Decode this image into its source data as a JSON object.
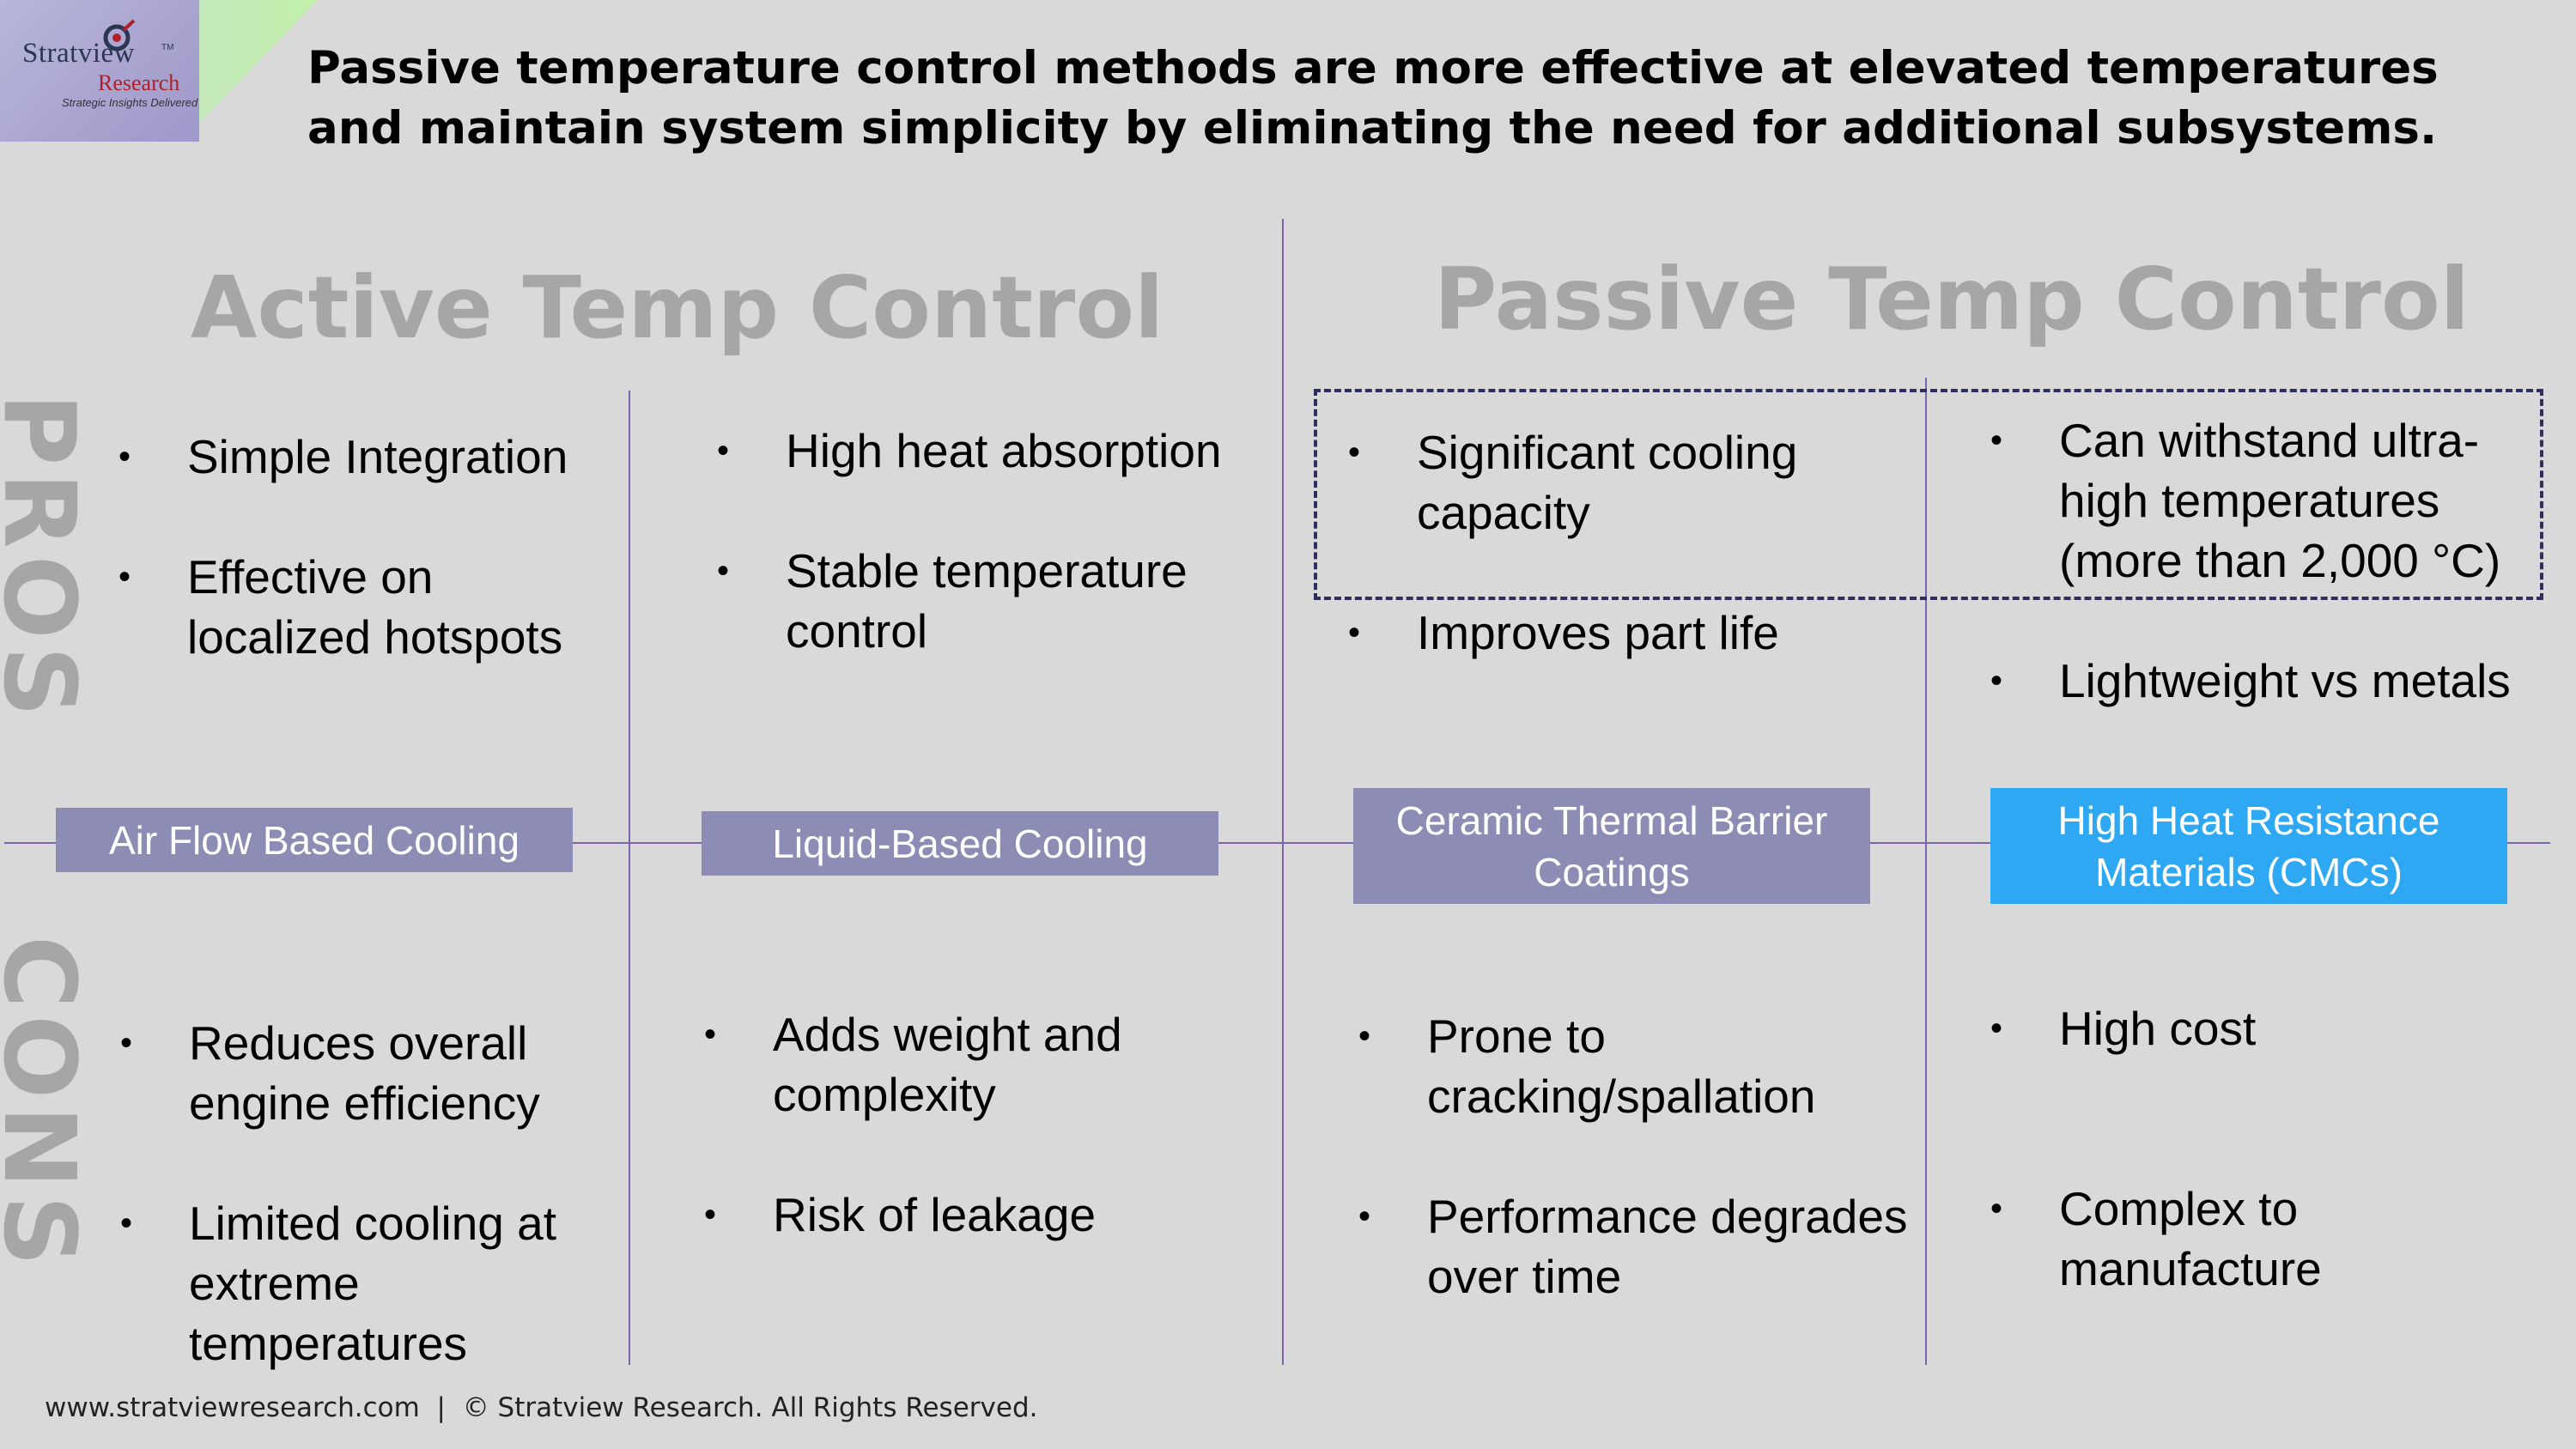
{
  "logo": {
    "name": "Stratview",
    "tm": "TM",
    "sub": "Research",
    "tagline": "Strategic Insights Delivered"
  },
  "headline": "Passive temperature control methods are more effective at elevated temperatures and maintain system simplicity by eliminating the need for additional subsystems.",
  "sections": {
    "active": "Active Temp Control",
    "passive": "Passive Temp Control"
  },
  "side_labels": {
    "pros": "PROS",
    "cons": "CONS"
  },
  "columns": [
    {
      "category": "Air Flow Based Cooling",
      "pros": [
        "Simple Integration",
        "Effective on localized hotspots"
      ],
      "cons": [
        "Reduces overall engine efficiency",
        "Limited cooling at extreme temperatures"
      ]
    },
    {
      "category": "Liquid-Based Cooling",
      "pros": [
        "High heat absorption",
        "Stable temperature control"
      ],
      "cons": [
        "Adds weight and complexity",
        "Risk of leakage"
      ]
    },
    {
      "category": "Ceramic Thermal Barrier Coatings",
      "pros": [
        "Significant cooling capacity",
        "Improves part life"
      ],
      "cons": [
        "Prone to cracking/spallation",
        "Performance degrades over time"
      ]
    },
    {
      "category": "High Heat Resistance Materials (CMCs)",
      "pros": [
        "Can withstand ultra-high temperatures (more than 2,000 °C)",
        "Lightweight vs metals"
      ],
      "cons": [
        "High cost",
        "Complex to manufacture"
      ]
    }
  ],
  "colors": {
    "background": "#d9d9d9",
    "category_purple": "#8c8cb4",
    "category_blue": "#2fa8f3",
    "divider": "#7a64ad",
    "section_title": "#a6a6a6"
  },
  "footer": "www.stratviewresearch.com  |  © Stratview Research. All Rights Reserved."
}
